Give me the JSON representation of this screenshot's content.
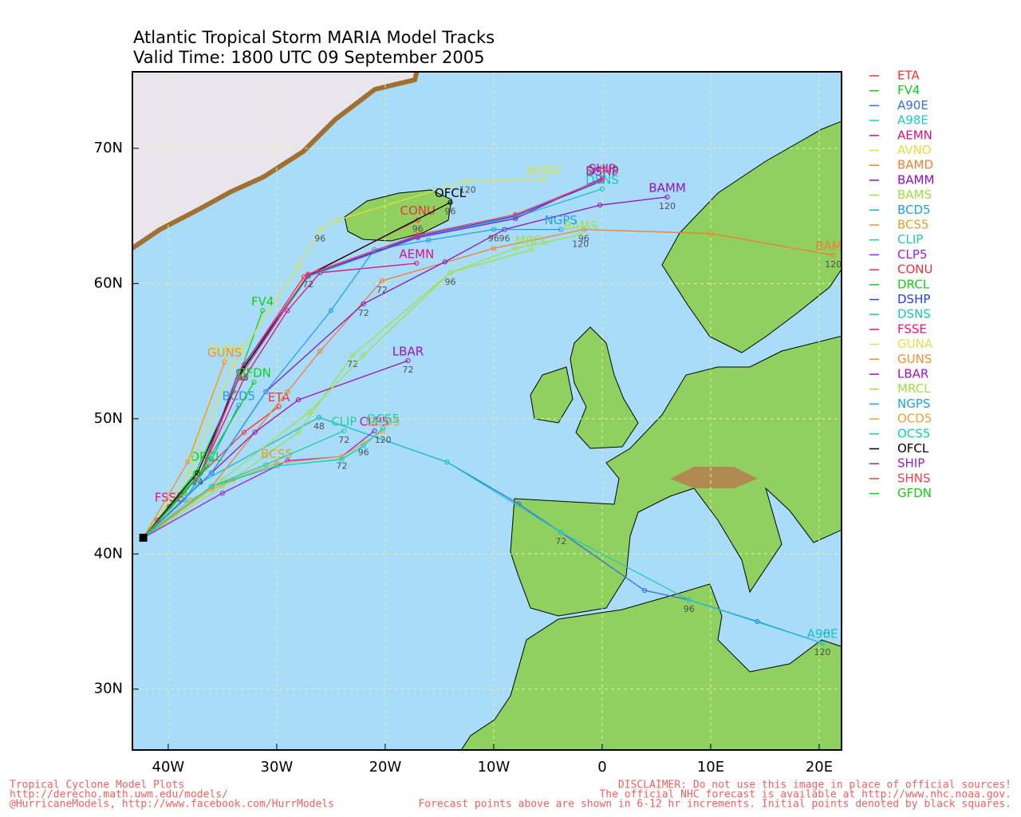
{
  "chart_data": {
    "type": "line",
    "title": "Atlantic Tropical Storm MARIA Model Tracks",
    "subtitle": "Valid Time: 1800 UTC 09 September 2005",
    "xlim": [
      -43.3,
      22.06
    ],
    "ylim": [
      25.5,
      75.66
    ],
    "xticks": [
      {
        "value": -40,
        "label": "40W"
      },
      {
        "value": -30,
        "label": "30W"
      },
      {
        "value": -20,
        "label": "20W"
      },
      {
        "value": -10,
        "label": "10W"
      },
      0,
      {
        "value": 10,
        "label": "10E"
      },
      {
        "value": 20,
        "label": "20E"
      }
    ],
    "yticks": [
      {
        "value": 30,
        "label": "30N"
      },
      {
        "value": 40,
        "label": "40N"
      },
      {
        "value": 50,
        "label": "50N"
      },
      {
        "value": 60,
        "label": "60N"
      },
      {
        "value": 70,
        "label": "70N"
      }
    ],
    "grid": true,
    "legend": "right",
    "series": [
      {
        "name": "ETA",
        "color": "#ff3030",
        "x": [
          -42.3,
          -37.5,
          -33,
          -29.8
        ],
        "values": [
          41.2,
          45.5,
          49,
          50.9
        ]
      },
      {
        "name": "FV4",
        "color": "#10d010",
        "x": [
          -42.3,
          -37.5,
          -34,
          -31.3
        ],
        "values": [
          41.2,
          46,
          52,
          58.0
        ]
      },
      {
        "name": "A90E",
        "color": "#3070e0",
        "x": [
          -42.3,
          -37,
          -26.1,
          -14.3,
          -7.7,
          -3.8,
          3.9,
          8.0,
          14.3,
          20.3
        ],
        "values": [
          41.2,
          45.3,
          50.1,
          46.8,
          43.7,
          41.6,
          37.3,
          36.6,
          35.0,
          33.4
        ],
        "point_labels": [
          null,
          null,
          "48",
          null,
          null,
          "72",
          null,
          "96",
          null,
          "120"
        ]
      },
      {
        "name": "A98E",
        "color": "#20c8c8",
        "x": [
          -42.3,
          -37,
          -26.1,
          -14.3,
          -3.8,
          8.0,
          20.3
        ],
        "values": [
          41.2,
          45.3,
          50.1,
          46.8,
          41.6,
          36.6,
          33.4
        ]
      },
      {
        "name": "AEMN",
        "color": "#e01080",
        "x": [
          -42.3,
          -37,
          -33,
          -29,
          -26,
          -17.1
        ],
        "values": [
          41.2,
          46,
          53,
          58,
          60.8,
          61.5
        ]
      },
      {
        "name": "AVNO",
        "color": "#e0e040",
        "x": [
          -42.3,
          -38,
          -34,
          -28,
          -26,
          -24.4,
          -12.4,
          -5.4
        ],
        "values": [
          41.2,
          46,
          54,
          61.3,
          64,
          64.7,
          67.6,
          67.7
        ],
        "point_labels": [
          null,
          null,
          null,
          null,
          "96",
          null,
          "120",
          null
        ]
      },
      {
        "name": "BAMD",
        "color": "#f08030",
        "x": [
          -42.3,
          -36,
          -29,
          -26,
          -20.3,
          -10,
          -1.7,
          10,
          21.3
        ],
        "values": [
          41.2,
          45,
          52,
          55,
          60.2,
          62.6,
          64.0,
          63.7,
          62.1
        ],
        "point_labels": [
          null,
          null,
          null,
          null,
          "72",
          null,
          "96",
          null,
          "120"
        ]
      },
      {
        "name": "BAMM",
        "color": "#9010c0",
        "x": [
          -42.3,
          -36,
          -31,
          -22,
          -14.5,
          -9,
          -0.2,
          6.0
        ],
        "values": [
          41.2,
          46,
          52,
          58.5,
          61.6,
          64,
          65.8,
          66.4
        ],
        "point_labels": [
          null,
          null,
          null,
          "72",
          null,
          "96",
          null,
          "120"
        ]
      },
      {
        "name": "BAMS",
        "color": "#a0e040",
        "x": [
          -42.3,
          -35,
          -28,
          -23,
          -14,
          -8,
          -2
        ],
        "values": [
          41.2,
          45,
          49,
          54.7,
          60.8,
          62.6,
          63.6
        ],
        "point_labels": [
          null,
          null,
          null,
          "72",
          "96",
          null,
          "120"
        ]
      },
      {
        "name": "BCD5",
        "color": "#20a0e0",
        "x": [
          -42.3,
          -38.5,
          -36,
          -33.5
        ],
        "values": [
          41.2,
          44,
          47,
          51
        ]
      },
      {
        "name": "BCS5",
        "color": "#e0a030",
        "x": [
          -42.3,
          -38,
          -34,
          -30
        ],
        "values": [
          41.2,
          44,
          45.5,
          46.7
        ]
      },
      {
        "name": "CLIP",
        "color": "#20d0a0",
        "x": [
          -42.3,
          -36,
          -31,
          -23.8
        ],
        "values": [
          41.2,
          45,
          46.6,
          49.1
        ],
        "point_labels": [
          null,
          null,
          null,
          "72"
        ]
      },
      {
        "name": "CLP5",
        "color": "#a020e0",
        "x": [
          -42.3,
          -35,
          -29,
          -24,
          -21
        ],
        "values": [
          41.2,
          44.5,
          46.9,
          47.2,
          49.1
        ]
      },
      {
        "name": "CONU",
        "color": "#f03040",
        "x": [
          -42.3,
          -37,
          -33,
          -27.5,
          -17.0
        ],
        "values": [
          41.2,
          46,
          54,
          60.5,
          64.7
        ],
        "point_labels": [
          null,
          null,
          null,
          null,
          "96"
        ]
      },
      {
        "name": "DRCL",
        "color": "#10d010",
        "x": [
          -42.3,
          -38.5,
          -36.5
        ],
        "values": [
          41.2,
          44.5,
          46.5
        ]
      },
      {
        "name": "DSHP",
        "color": "#2040e0",
        "x": [
          -42.3,
          -37,
          -33.5,
          -27.1,
          -17,
          -8,
          0
        ],
        "values": [
          41.2,
          46,
          53,
          60.6,
          63.5,
          65,
          67.6
        ]
      },
      {
        "name": "DSNS",
        "color": "#20c0c0",
        "x": [
          -42.3,
          -37,
          -33.5,
          -27.1,
          -17,
          -8,
          0
        ],
        "values": [
          41.2,
          46,
          53.2,
          60.5,
          63.4,
          64.9,
          67.0
        ]
      },
      {
        "name": "FSSE",
        "color": "#f01080",
        "x": [
          -42.3,
          -41,
          -39.9
        ],
        "values": [
          41.2,
          42.5,
          43.5
        ]
      },
      {
        "name": "GUNA",
        "color": "#e0e050",
        "x": [
          -42.3,
          -38,
          -34.6
        ],
        "values": [
          41.2,
          47,
          54.5
        ]
      },
      {
        "name": "GUNS",
        "color": "#f09030",
        "x": [
          -42.3,
          -38.2,
          -34.8
        ],
        "values": [
          41.2,
          46.8,
          54.2
        ]
      },
      {
        "name": "LBAR",
        "color": "#a010c0",
        "x": [
          -42.3,
          -36,
          -32,
          -28,
          -17.9
        ],
        "values": [
          41.2,
          46,
          49,
          51.4,
          54.3
        ],
        "point_labels": [
          null,
          null,
          null,
          null,
          "72"
        ]
      },
      {
        "name": "MRCL",
        "color": "#a0e040",
        "x": [
          -42.3,
          -35,
          -27,
          -22,
          -14,
          -6.5
        ],
        "values": [
          41.2,
          45.5,
          50.5,
          54.7,
          60.8,
          62.5
        ]
      },
      {
        "name": "NGPS",
        "color": "#20a0f0",
        "x": [
          -42.3,
          -36,
          -31,
          -25,
          -21,
          -16,
          -10,
          -3.8
        ],
        "values": [
          41.2,
          46,
          52,
          58,
          62.5,
          63.2,
          64.0,
          64.0
        ],
        "point_labels": [
          null,
          null,
          null,
          null,
          null,
          null,
          "96",
          null
        ]
      },
      {
        "name": "OCD5",
        "color": "#f0a030",
        "x": [
          -42.3,
          -36,
          -30,
          -24,
          -22,
          -20.2
        ],
        "values": [
          41.2,
          44.8,
          46.7,
          47.2,
          48.2,
          49.1
        ],
        "point_labels": [
          null,
          null,
          null,
          "72",
          "96",
          "120"
        ]
      },
      {
        "name": "OCS5",
        "color": "#10d0b0",
        "x": [
          -42.3,
          -36,
          -30,
          -24,
          -22,
          -20.2
        ],
        "values": [
          41.2,
          45,
          46.5,
          47.0,
          48.0,
          49.3
        ]
      },
      {
        "name": "OFCL",
        "color": "#000000",
        "x": [
          -42.3,
          -37.3,
          -33.1,
          -27.1,
          -14.0
        ],
        "values": [
          41.2,
          46.0,
          53.7,
          60.6,
          66.0
        ],
        "point_labels": [
          null,
          "24",
          "48",
          "72",
          "96"
        ]
      },
      {
        "name": "SHIP",
        "color": "#9020d0",
        "x": [
          -42.3,
          -37,
          -33.5,
          -27.1,
          -17,
          -8,
          0
        ],
        "values": [
          41.2,
          46,
          53.5,
          60.6,
          63.4,
          64.8,
          67.8
        ]
      },
      {
        "name": "SHNS",
        "color": "#f04050",
        "x": [
          -42.3,
          -37,
          -33.5,
          -27.1,
          -17,
          -8,
          0
        ],
        "values": [
          41.2,
          46,
          53,
          60.7,
          63.6,
          65.1,
          67.7
        ]
      },
      {
        "name": "GFDN",
        "color": "#10d010",
        "x": [
          -42.3,
          -37,
          -32.1
        ],
        "values": [
          41.2,
          46,
          52.7
        ]
      }
    ]
  },
  "footer": {
    "left": [
      "Tropical Cyclone Model Plots",
      "http://derecho.math.uwm.edu/models/",
      "@HurricaneModels, http://www.facebook.com/HurrModels"
    ],
    "right": [
      "DISCLAIMER: Do not use this image in place of official sources!",
      "The official NHC forecast is available at http://www.nhc.noaa.gov.",
      "Forecast points above are shown in 6-12 hr increments. Initial points denoted by black squares."
    ]
  }
}
